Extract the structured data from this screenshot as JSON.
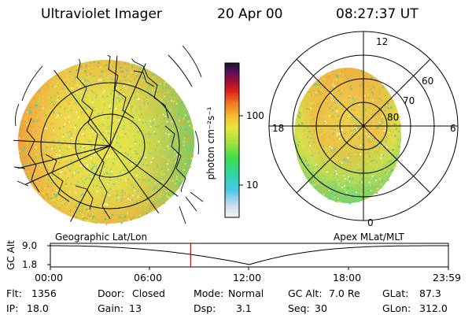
{
  "header": {
    "instrument": "Ultraviolet Imager",
    "date": "20 Apr 00",
    "time": "08:27:37 UT"
  },
  "left_panel": {
    "label": "Geographic Lat/Lon"
  },
  "right_panel": {
    "label": "Apex MLat/MLT",
    "mlt_labels": [
      "12",
      "18",
      "6",
      "0"
    ],
    "lat_labels": [
      "60",
      "70",
      "80"
    ]
  },
  "colorbar": {
    "unit": "photon cm⁻²s⁻¹",
    "tick_labels": [
      "100",
      "10"
    ]
  },
  "altitude_plot": {
    "axis_title": "GC Alt",
    "y_labels": [
      "9.0",
      "1.8"
    ],
    "x_labels": [
      "00:00",
      "06:00",
      "12:00",
      "18:00",
      "23:59"
    ],
    "current_time_hours": 8.46
  },
  "status": {
    "flt": {
      "label": "Flt:",
      "value": "1356"
    },
    "ip": {
      "label": "IP:",
      "value": "18.0"
    },
    "door": {
      "label": "Door:",
      "value": "Closed"
    },
    "gain": {
      "label": "Gain:",
      "value": "13"
    },
    "mode": {
      "label": "Mode:",
      "value": "Normal"
    },
    "dsp": {
      "label": "Dsp:",
      "value": "3.1"
    },
    "gcalt": {
      "label": "GC Alt:",
      "value": "7.0 Re"
    },
    "seq": {
      "label": "Seq:",
      "value": "30"
    },
    "glat": {
      "label": "GLat:",
      "value": "87.3"
    },
    "glon": {
      "label": "GLon:",
      "value": "312.0"
    }
  },
  "colors": {
    "accent_marker": "#e00000",
    "line": "#000000"
  }
}
